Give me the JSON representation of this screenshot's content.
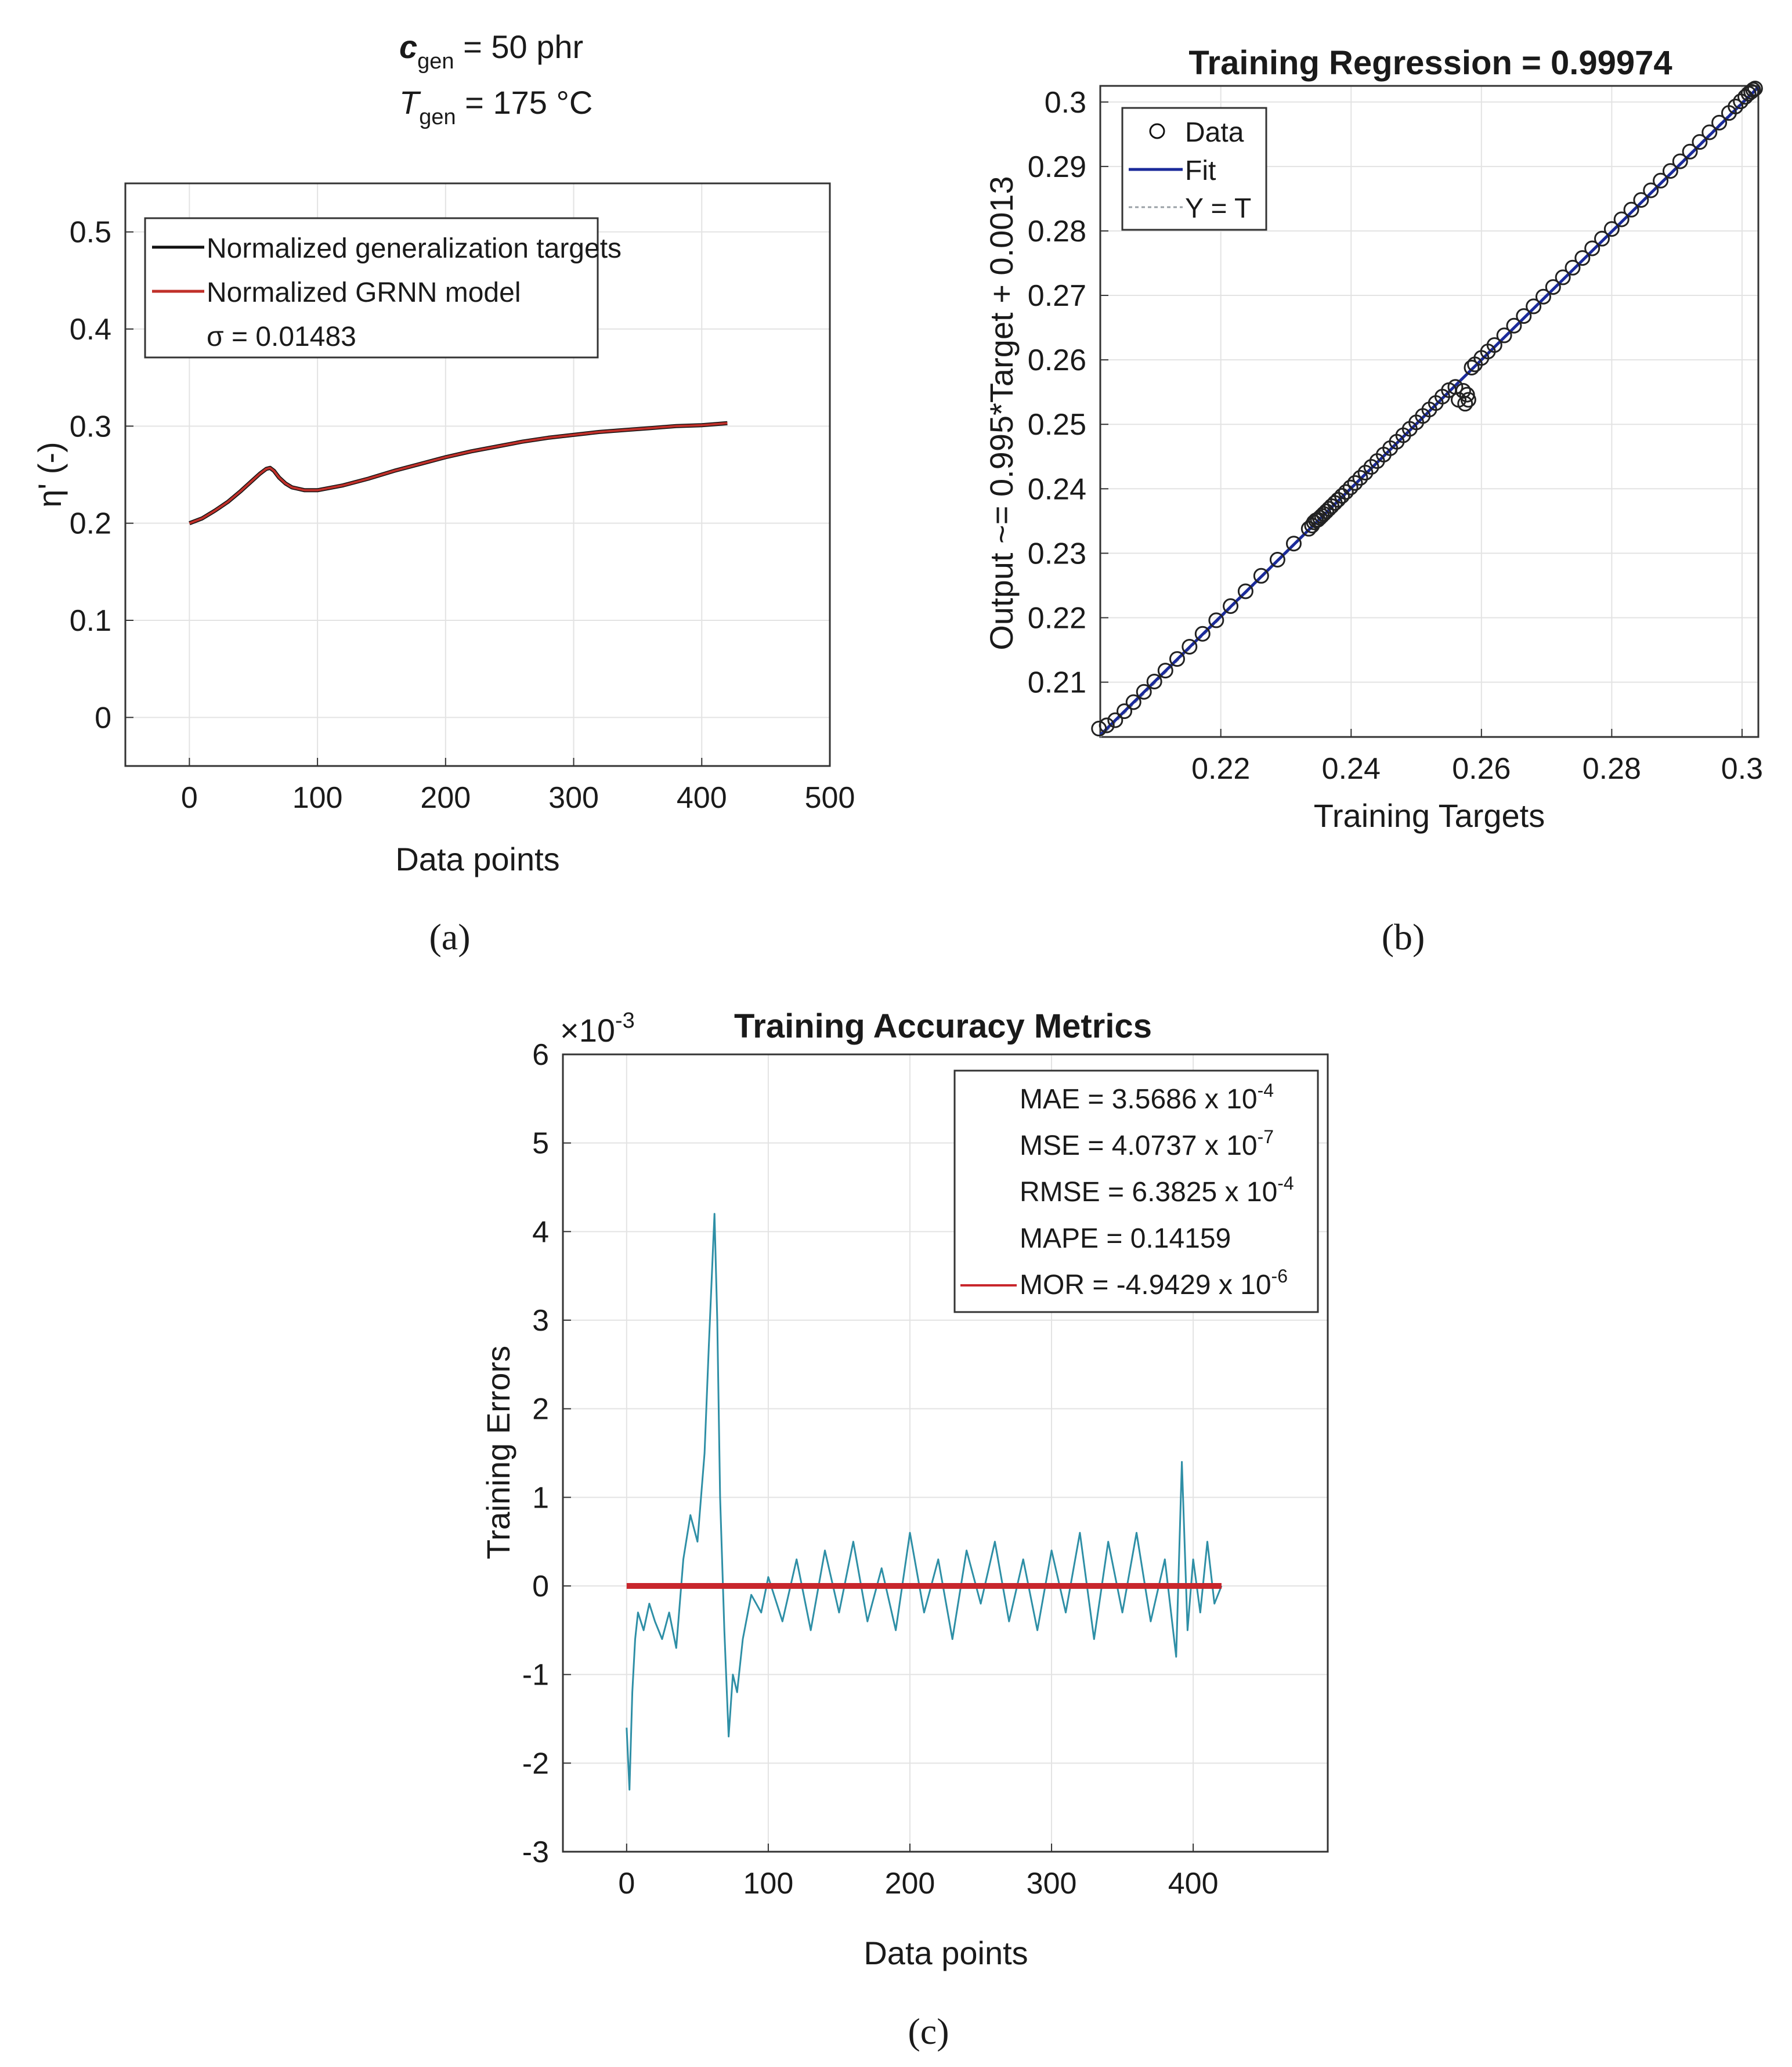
{
  "chart_data": [
    {
      "panel": "(a)",
      "type": "line",
      "title_lines": [
        {
          "sym": "c",
          "sub": "gen",
          "text": " = 50  phr"
        },
        {
          "sym": "T",
          "sub": "gen",
          "text": " = 175  °C"
        }
      ],
      "xlabel": "Data points",
      "ylabel": "η' (-)",
      "xlim": [
        -50,
        500
      ],
      "ylim": [
        -0.05,
        0.55
      ],
      "xticks": [
        0,
        100,
        200,
        300,
        400,
        500
      ],
      "xtick_labels": [
        "0",
        "100",
        "200",
        "300",
        "400",
        "500"
      ],
      "yticks": [
        0,
        0.1,
        0.2,
        0.3,
        0.4,
        0.5
      ],
      "ytick_labels": [
        "0",
        "0.1",
        "0.2",
        "0.3",
        "0.4",
        "0.5"
      ],
      "grid": true,
      "legend_placement": "top-left",
      "series": [
        {
          "name": "Normalized generalization targets",
          "color": "#111111",
          "x": [
            0,
            10,
            20,
            30,
            40,
            50,
            55,
            60,
            63,
            66,
            70,
            75,
            80,
            90,
            100,
            120,
            140,
            160,
            180,
            200,
            220,
            240,
            260,
            280,
            300,
            320,
            340,
            360,
            380,
            400,
            420
          ],
          "y": [
            0.2,
            0.205,
            0.213,
            0.222,
            0.233,
            0.245,
            0.251,
            0.256,
            0.257,
            0.254,
            0.247,
            0.241,
            0.237,
            0.234,
            0.234,
            0.239,
            0.246,
            0.254,
            0.261,
            0.268,
            0.274,
            0.279,
            0.284,
            0.288,
            0.291,
            0.294,
            0.296,
            0.298,
            0.3,
            0.301,
            0.303
          ]
        },
        {
          "name": "Normalized GRNN model",
          "color": "#c0302a",
          "x": [
            0,
            10,
            20,
            30,
            40,
            50,
            55,
            60,
            63,
            66,
            70,
            75,
            80,
            90,
            100,
            120,
            140,
            160,
            180,
            200,
            220,
            240,
            260,
            280,
            300,
            320,
            340,
            360,
            380,
            400,
            420
          ],
          "y": [
            0.2,
            0.205,
            0.213,
            0.222,
            0.233,
            0.245,
            0.251,
            0.256,
            0.257,
            0.254,
            0.247,
            0.241,
            0.237,
            0.234,
            0.234,
            0.239,
            0.246,
            0.254,
            0.261,
            0.268,
            0.274,
            0.279,
            0.284,
            0.288,
            0.291,
            0.294,
            0.296,
            0.298,
            0.3,
            0.301,
            0.303
          ]
        }
      ],
      "annotation": "σ = 0.01483"
    },
    {
      "panel": "(b)",
      "type": "scatter",
      "title": "Training Regression = 0.99974",
      "xlabel": "Training Targets",
      "ylabel": "Output ~= 0.995*Target + 0.0013",
      "xlim": [
        0.2015,
        0.3025
      ],
      "ylim": [
        0.2015,
        0.3025
      ],
      "xticks": [
        0.22,
        0.24,
        0.26,
        0.28,
        0.3
      ],
      "xtick_labels": [
        "0.22",
        "0.24",
        "0.26",
        "0.28",
        "0.3"
      ],
      "yticks": [
        0.21,
        0.22,
        0.23,
        0.24,
        0.25,
        0.26,
        0.27,
        0.28,
        0.29,
        0.3
      ],
      "ytick_labels": [
        "0.21",
        "0.22",
        "0.23",
        "0.24",
        "0.25",
        "0.26",
        "0.27",
        "0.28",
        "0.29",
        "0.3"
      ],
      "grid": true,
      "legend_placement": "top-left",
      "legend": [
        "Data",
        "Fit",
        "Y = T"
      ],
      "fit": {
        "slope": 0.995,
        "intercept": 0.0013,
        "color": "#1a2a9a"
      },
      "identity_color": "#9aa0a6",
      "points_x": [
        0.2013,
        0.2025,
        0.2038,
        0.2052,
        0.2066,
        0.2082,
        0.2098,
        0.2115,
        0.2133,
        0.2152,
        0.2172,
        0.2193,
        0.2215,
        0.2238,
        0.2262,
        0.2287,
        0.2312,
        0.2335,
        0.234,
        0.2343,
        0.2346,
        0.2349,
        0.2352,
        0.2355,
        0.2358,
        0.2362,
        0.2366,
        0.237,
        0.2375,
        0.238,
        0.2386,
        0.2392,
        0.2399,
        0.2406,
        0.2414,
        0.2422,
        0.2431,
        0.244,
        0.245,
        0.246,
        0.247,
        0.248,
        0.249,
        0.25,
        0.251,
        0.252,
        0.253,
        0.254,
        0.255,
        0.256,
        0.2565,
        0.2572,
        0.2575,
        0.2578,
        0.258,
        0.2585,
        0.259,
        0.26,
        0.261,
        0.262,
        0.2635,
        0.265,
        0.2665,
        0.268,
        0.2695,
        0.271,
        0.2725,
        0.274,
        0.2755,
        0.277,
        0.2785,
        0.28,
        0.2815,
        0.283,
        0.2845,
        0.286,
        0.2875,
        0.289,
        0.2905,
        0.292,
        0.2935,
        0.295,
        0.2965,
        0.298,
        0.299,
        0.2998,
        0.3005,
        0.301,
        0.3014,
        0.3017,
        0.302
      ],
      "points_y": [
        0.2028,
        0.2033,
        0.2041,
        0.2055,
        0.2069,
        0.2085,
        0.2101,
        0.2118,
        0.2136,
        0.2155,
        0.2175,
        0.2196,
        0.2218,
        0.2241,
        0.2265,
        0.229,
        0.2315,
        0.2338,
        0.2343,
        0.2348,
        0.2351,
        0.2352,
        0.2355,
        0.2358,
        0.2361,
        0.2365,
        0.2369,
        0.2373,
        0.2378,
        0.2383,
        0.2389,
        0.2395,
        0.2402,
        0.2409,
        0.2417,
        0.2425,
        0.2434,
        0.2443,
        0.2453,
        0.2463,
        0.2473,
        0.2483,
        0.2493,
        0.2503,
        0.2513,
        0.2523,
        0.2533,
        0.2543,
        0.2553,
        0.2558,
        0.2538,
        0.2552,
        0.2532,
        0.2546,
        0.2538,
        0.2588,
        0.2593,
        0.2603,
        0.2613,
        0.2623,
        0.2638,
        0.2653,
        0.2668,
        0.2683,
        0.2698,
        0.2713,
        0.2728,
        0.2743,
        0.2758,
        0.2773,
        0.2788,
        0.2803,
        0.2818,
        0.2833,
        0.2848,
        0.2863,
        0.2878,
        0.2893,
        0.2908,
        0.2923,
        0.2938,
        0.2953,
        0.2968,
        0.2983,
        0.2993,
        0.3001,
        0.3008,
        0.3013,
        0.3016,
        0.3019,
        0.3021
      ]
    },
    {
      "panel": "(c)",
      "type": "line",
      "title": "Training Accuracy Metrics",
      "xlabel": "Data points",
      "ylabel": "Training Errors",
      "exponent_label": "×10",
      "exponent_sup": "-3",
      "xlim": [
        -45,
        495
      ],
      "ylim": [
        -3,
        6
      ],
      "xticks": [
        0,
        100,
        200,
        300,
        400
      ],
      "xtick_labels": [
        "0",
        "100",
        "200",
        "300",
        "400"
      ],
      "yticks": [
        -3,
        -2,
        -1,
        0,
        1,
        2,
        3,
        4,
        5,
        6
      ],
      "ytick_labels": [
        "-3",
        "-2",
        "-1",
        "0",
        "1",
        "2",
        "3",
        "4",
        "5",
        "6"
      ],
      "grid": true,
      "legend_placement": "top-right",
      "metrics": [
        {
          "text": "MAE = 3.5686 x 10",
          "exp": "-4"
        },
        {
          "text": "MSE = 4.0737 x 10",
          "exp": "-7"
        },
        {
          "text": "RMSE = 6.3825 x 10",
          "exp": "-4"
        },
        {
          "text": "MAPE = 0.14159",
          "exp": ""
        },
        {
          "text": "MOR = -4.9429 x 10",
          "exp": "-6"
        }
      ],
      "error_color": "#2e8fa6",
      "mor_color": "#c8262c",
      "mor_value": 0,
      "error_series": {
        "x": [
          0,
          2,
          4,
          6,
          8,
          12,
          16,
          20,
          25,
          30,
          35,
          40,
          45,
          50,
          55,
          58,
          62,
          64,
          66,
          69,
          72,
          75,
          78,
          82,
          88,
          95,
          100,
          110,
          120,
          130,
          140,
          150,
          160,
          170,
          180,
          190,
          200,
          210,
          220,
          230,
          240,
          250,
          260,
          270,
          280,
          290,
          300,
          310,
          320,
          330,
          340,
          350,
          360,
          370,
          380,
          388,
          392,
          396,
          400,
          405,
          410,
          415,
          420
        ],
        "y": [
          -1.6,
          -2.3,
          -1.2,
          -0.6,
          -0.3,
          -0.5,
          -0.2,
          -0.4,
          -0.6,
          -0.3,
          -0.7,
          0.3,
          0.8,
          0.5,
          1.5,
          2.7,
          4.2,
          3.0,
          1.0,
          -0.5,
          -1.7,
          -1.0,
          -1.2,
          -0.6,
          -0.1,
          -0.3,
          0.1,
          -0.4,
          0.3,
          -0.5,
          0.4,
          -0.3,
          0.5,
          -0.4,
          0.2,
          -0.5,
          0.6,
          -0.3,
          0.3,
          -0.6,
          0.4,
          -0.2,
          0.5,
          -0.4,
          0.3,
          -0.5,
          0.4,
          -0.3,
          0.6,
          -0.6,
          0.5,
          -0.3,
          0.6,
          -0.4,
          0.3,
          -0.8,
          1.4,
          -0.5,
          0.3,
          -0.3,
          0.5,
          -0.2,
          0.0
        ]
      }
    }
  ]
}
